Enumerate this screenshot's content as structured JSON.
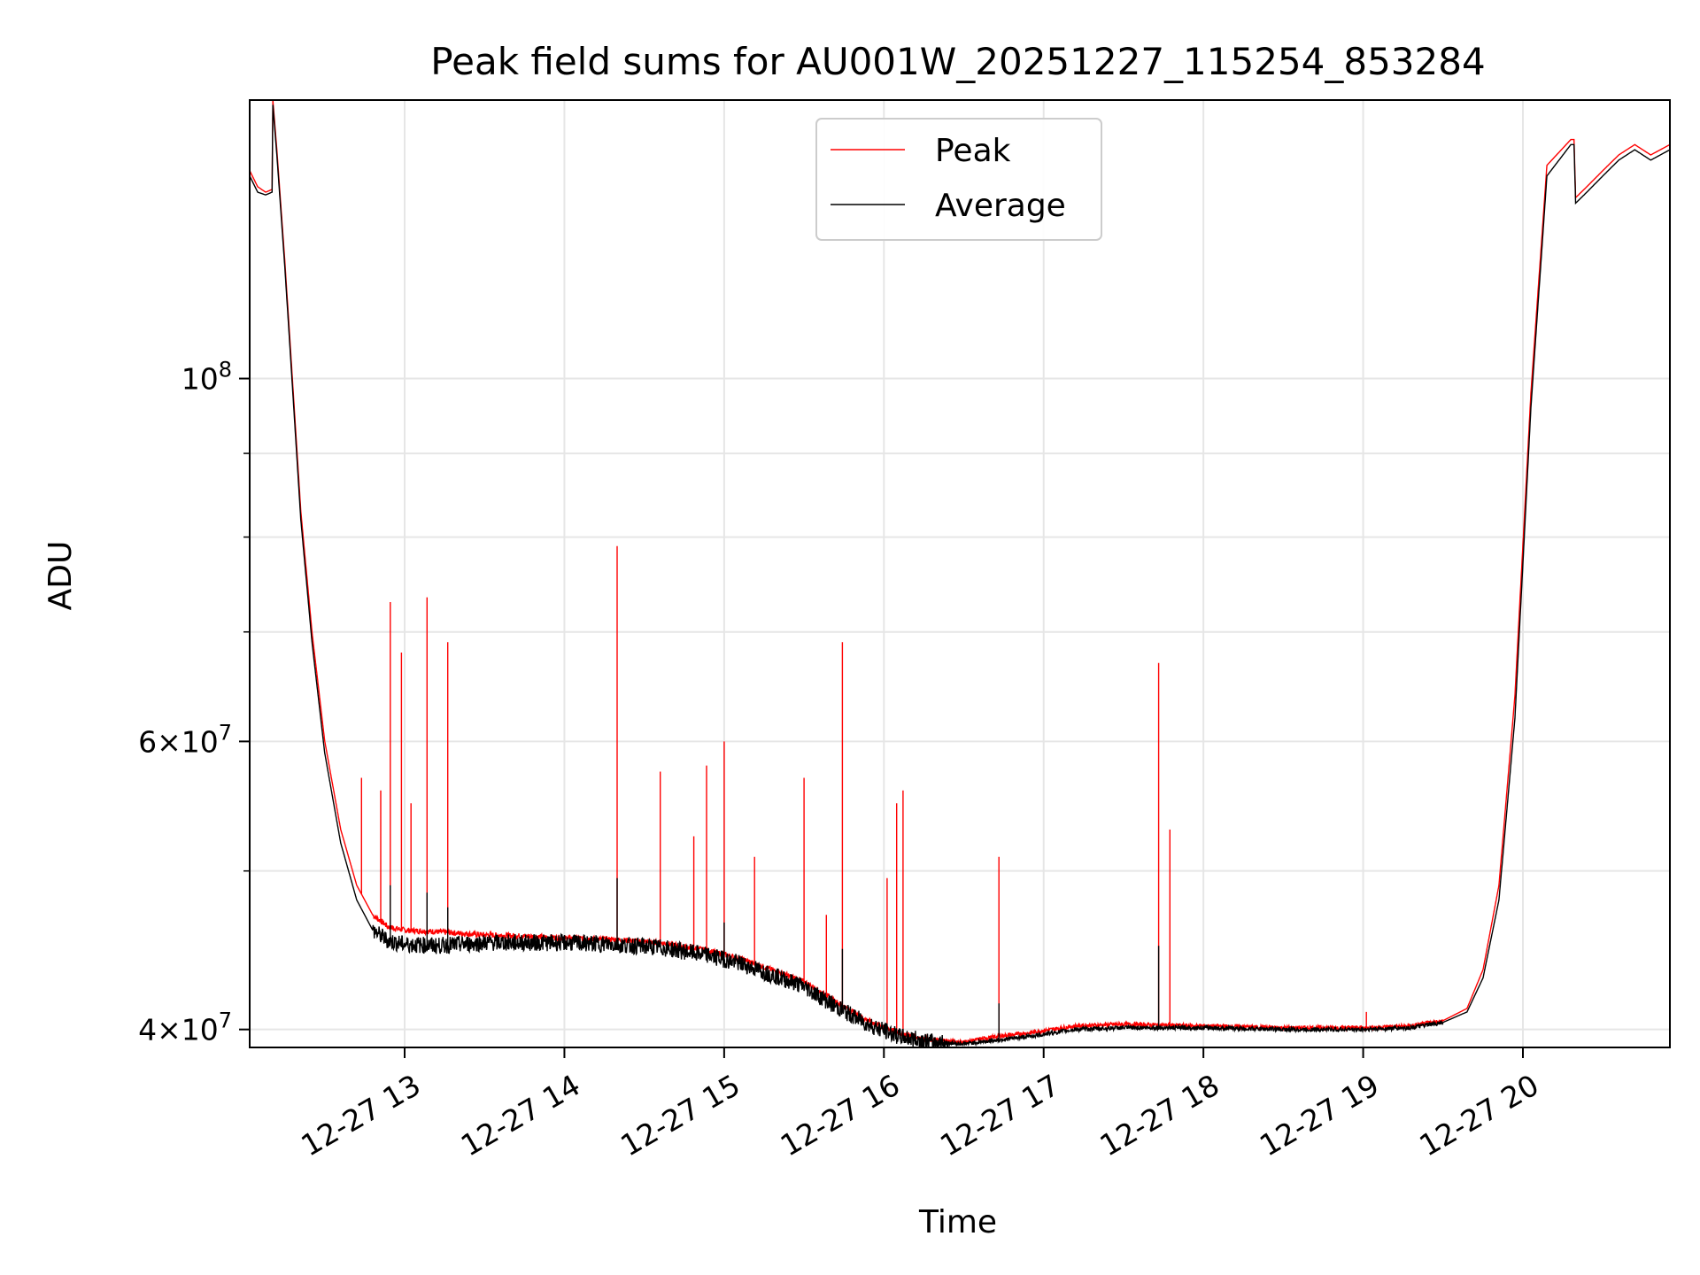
{
  "chart_data": {
    "type": "line",
    "title": "Peak field sums for AU001W_20251227_115254_853284",
    "xlabel": "Time",
    "ylabel": "ADU",
    "yscale": "log",
    "xlim": [
      12.03,
      20.92
    ],
    "ylim": [
      39000000,
      148000000
    ],
    "grid": true,
    "legend_position": "upper-center",
    "x_ticks": [
      {
        "value": 13,
        "label": "12-27 13"
      },
      {
        "value": 14,
        "label": "12-27 14"
      },
      {
        "value": 15,
        "label": "12-27 15"
      },
      {
        "value": 16,
        "label": "12-27 16"
      },
      {
        "value": 17,
        "label": "12-27 17"
      },
      {
        "value": 18,
        "label": "12-27 18"
      },
      {
        "value": 19,
        "label": "12-27 19"
      },
      {
        "value": 20,
        "label": "12-27 20"
      }
    ],
    "y_major_ticks": [
      {
        "value": 40000000,
        "base": "4",
        "mult": "×",
        "ten": "10",
        "exp": "7"
      },
      {
        "value": 60000000,
        "base": "6",
        "mult": "×",
        "ten": "10",
        "exp": "7"
      },
      {
        "value": 100000000,
        "base": "",
        "mult": "",
        "ten": "10",
        "exp": "8"
      }
    ],
    "y_minor_ticks": [
      50000000,
      70000000,
      80000000,
      90000000
    ],
    "series": [
      {
        "name": "Peak",
        "color": "#ff0000",
        "x": [
          12.03,
          12.08,
          12.13,
          12.17,
          12.175,
          12.2,
          12.25,
          12.3,
          12.35,
          12.42,
          12.5,
          12.6,
          12.7,
          12.8,
          12.9,
          13.0,
          13.2,
          13.5,
          13.8,
          14.0,
          14.3,
          14.6,
          14.9,
          15.1,
          15.3,
          15.5,
          15.7,
          15.9,
          16.1,
          16.3,
          16.5,
          16.7,
          16.9,
          17.2,
          17.5,
          18.0,
          18.5,
          19.0,
          19.3,
          19.5,
          19.65,
          19.75,
          19.85,
          19.95,
          20.05,
          20.15,
          20.3,
          20.32,
          20.33,
          20.4,
          20.5,
          20.6,
          20.7,
          20.8,
          20.92
        ],
        "values": [
          134000000,
          131000000,
          130000000,
          130500000,
          148000000,
          138000000,
          118000000,
          99000000,
          83000000,
          70000000,
          60000000,
          53000000,
          49000000,
          47000000,
          46200000,
          46000000,
          45900000,
          45700000,
          45600000,
          45500000,
          45400000,
          45200000,
          44700000,
          44200000,
          43500000,
          42800000,
          41600000,
          40500000,
          39800000,
          39400000,
          39300000,
          39600000,
          39800000,
          40200000,
          40300000,
          40200000,
          40100000,
          40100000,
          40200000,
          40500000,
          41200000,
          43500000,
          49000000,
          64000000,
          98000000,
          135000000,
          140000000,
          140000000,
          129000000,
          131000000,
          134000000,
          137000000,
          139000000,
          137000000,
          139000000
        ],
        "spikes": [
          {
            "x": 12.73,
            "value": 57000000
          },
          {
            "x": 12.85,
            "value": 56000000
          },
          {
            "x": 12.91,
            "value": 73000000
          },
          {
            "x": 12.98,
            "value": 68000000
          },
          {
            "x": 13.04,
            "value": 55000000
          },
          {
            "x": 13.14,
            "value": 73500000
          },
          {
            "x": 13.27,
            "value": 69000000
          },
          {
            "x": 14.33,
            "value": 79000000
          },
          {
            "x": 14.6,
            "value": 57500000
          },
          {
            "x": 14.81,
            "value": 52500000
          },
          {
            "x": 14.89,
            "value": 58000000
          },
          {
            "x": 15.0,
            "value": 60000000
          },
          {
            "x": 15.19,
            "value": 51000000
          },
          {
            "x": 15.5,
            "value": 57000000
          },
          {
            "x": 15.64,
            "value": 47000000
          },
          {
            "x": 15.74,
            "value": 69000000
          },
          {
            "x": 16.02,
            "value": 49500000
          },
          {
            "x": 16.08,
            "value": 55000000
          },
          {
            "x": 16.12,
            "value": 56000000
          },
          {
            "x": 16.72,
            "value": 51000000
          },
          {
            "x": 17.72,
            "value": 67000000
          },
          {
            "x": 17.79,
            "value": 53000000
          },
          {
            "x": 19.02,
            "value": 41000000
          }
        ]
      },
      {
        "name": "Average",
        "color": "#000000",
        "x": [
          12.03,
          12.08,
          12.13,
          12.17,
          12.175,
          12.2,
          12.25,
          12.3,
          12.35,
          12.42,
          12.5,
          12.6,
          12.7,
          12.8,
          12.9,
          13.0,
          13.2,
          13.5,
          13.8,
          14.0,
          14.3,
          14.6,
          14.9,
          15.1,
          15.3,
          15.5,
          15.7,
          15.9,
          16.1,
          16.3,
          16.5,
          16.7,
          16.9,
          17.2,
          17.5,
          18.0,
          18.5,
          19.0,
          19.3,
          19.5,
          19.65,
          19.75,
          19.85,
          19.95,
          20.05,
          20.15,
          20.3,
          20.32,
          20.33,
          20.4,
          20.5,
          20.6,
          20.7,
          20.8,
          20.92
        ],
        "values": [
          133000000,
          130000000,
          129500000,
          130000000,
          147000000,
          137000000,
          117000000,
          98000000,
          82000000,
          69000000,
          59000000,
          52000000,
          48000000,
          46000000,
          45300000,
          45100000,
          45000000,
          45200000,
          45200000,
          45200000,
          45100000,
          44900000,
          44400000,
          43900000,
          43200000,
          42500000,
          41300000,
          40300000,
          39600000,
          39300000,
          39200000,
          39400000,
          39600000,
          40000000,
          40100000,
          40100000,
          40000000,
          40000000,
          40100000,
          40400000,
          41000000,
          43000000,
          48000000,
          62000000,
          96000000,
          133000000,
          139000000,
          139000000,
          128000000,
          130000000,
          133000000,
          136000000,
          138000000,
          136000000,
          138000000
        ],
        "spikes": [
          {
            "x": 12.91,
            "value": 49000000
          },
          {
            "x": 13.14,
            "value": 48500000
          },
          {
            "x": 13.27,
            "value": 47500000
          },
          {
            "x": 14.33,
            "value": 49500000
          },
          {
            "x": 15.0,
            "value": 46500000
          },
          {
            "x": 15.74,
            "value": 44800000
          },
          {
            "x": 16.72,
            "value": 41500000
          },
          {
            "x": 17.72,
            "value": 45000000
          }
        ]
      }
    ]
  }
}
